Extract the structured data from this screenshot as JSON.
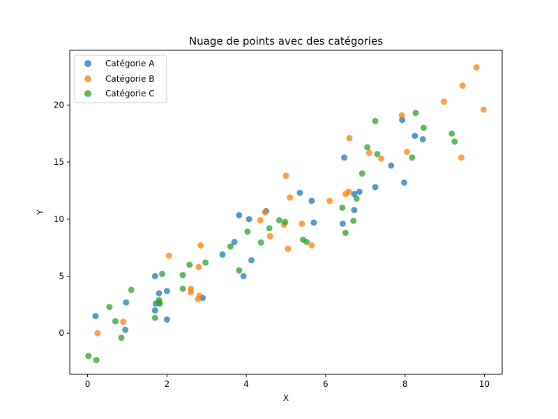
{
  "chart_data": {
    "type": "scatter",
    "title": "Nuage de points avec des catégories",
    "xlabel": "X",
    "ylabel": "Y",
    "xlim": [
      -0.45,
      10.45
    ],
    "ylim": [
      -3.6,
      24.8
    ],
    "xticks": [
      0,
      2,
      4,
      6,
      8,
      10
    ],
    "yticks": [
      0,
      5,
      10,
      15,
      20
    ],
    "grid": false,
    "legend_position": "top-left",
    "series": [
      {
        "name": "Catégorie A",
        "color": "#1f77b4",
        "points": [
          [
            0.2,
            1.5
          ],
          [
            0.97,
            2.7
          ],
          [
            0.95,
            0.3
          ],
          [
            1.7,
            2.0
          ],
          [
            1.72,
            2.6
          ],
          [
            1.7,
            5.0
          ],
          [
            1.8,
            3.5
          ],
          [
            2.0,
            3.7
          ],
          [
            2.0,
            1.2
          ],
          [
            2.9,
            3.1
          ],
          [
            3.4,
            6.9
          ],
          [
            3.7,
            8.0
          ],
          [
            3.82,
            10.35
          ],
          [
            3.93,
            5.0
          ],
          [
            4.07,
            10.0
          ],
          [
            4.13,
            6.4
          ],
          [
            4.5,
            10.7
          ],
          [
            5.35,
            12.3
          ],
          [
            5.7,
            9.7
          ],
          [
            5.65,
            11.6
          ],
          [
            6.47,
            15.4
          ],
          [
            6.43,
            9.6
          ],
          [
            6.72,
            12.2
          ],
          [
            6.72,
            10.8
          ],
          [
            6.85,
            12.4
          ],
          [
            7.25,
            12.8
          ],
          [
            7.65,
            14.7
          ],
          [
            7.93,
            18.7
          ],
          [
            7.98,
            13.2
          ],
          [
            8.25,
            17.3
          ],
          [
            8.45,
            17.0
          ]
        ]
      },
      {
        "name": "Catégorie B",
        "color": "#ff7f0e",
        "points": [
          [
            0.25,
            0.0
          ],
          [
            0.9,
            1.0
          ],
          [
            2.05,
            6.8
          ],
          [
            2.6,
            3.9
          ],
          [
            2.6,
            3.6
          ],
          [
            2.78,
            3.0
          ],
          [
            2.8,
            5.8
          ],
          [
            2.82,
            3.3
          ],
          [
            2.85,
            7.7
          ],
          [
            4.35,
            9.9
          ],
          [
            4.47,
            10.6
          ],
          [
            4.6,
            8.5
          ],
          [
            4.95,
            9.5
          ],
          [
            5.0,
            13.8
          ],
          [
            5.05,
            7.4
          ],
          [
            5.1,
            11.9
          ],
          [
            5.4,
            9.6
          ],
          [
            5.65,
            7.7
          ],
          [
            6.1,
            11.6
          ],
          [
            6.5,
            12.2
          ],
          [
            6.58,
            12.4
          ],
          [
            6.6,
            17.1
          ],
          [
            7.1,
            15.8
          ],
          [
            7.4,
            15.3
          ],
          [
            7.92,
            19.1
          ],
          [
            8.05,
            15.9
          ],
          [
            8.98,
            20.3
          ],
          [
            9.42,
            15.4
          ],
          [
            9.45,
            21.7
          ],
          [
            9.8,
            23.3
          ],
          [
            9.98,
            19.6
          ]
        ]
      },
      {
        "name": "Catégorie C",
        "color": "#2ca02c",
        "points": [
          [
            0.02,
            -2.0
          ],
          [
            0.22,
            -2.35
          ],
          [
            0.55,
            2.3
          ],
          [
            0.7,
            1.05
          ],
          [
            0.85,
            -0.4
          ],
          [
            1.1,
            3.8
          ],
          [
            1.7,
            1.35
          ],
          [
            1.8,
            2.9
          ],
          [
            1.8,
            2.7
          ],
          [
            1.82,
            2.6
          ],
          [
            1.88,
            5.2
          ],
          [
            2.4,
            3.9
          ],
          [
            2.4,
            5.1
          ],
          [
            2.57,
            6.0
          ],
          [
            2.97,
            6.2
          ],
          [
            3.6,
            7.6
          ],
          [
            3.82,
            5.5
          ],
          [
            4.03,
            8.9
          ],
          [
            4.37,
            7.95
          ],
          [
            4.58,
            9.2
          ],
          [
            4.83,
            9.9
          ],
          [
            4.98,
            9.75
          ],
          [
            5.43,
            8.2
          ],
          [
            5.52,
            8.0
          ],
          [
            6.42,
            11.0
          ],
          [
            6.5,
            8.8
          ],
          [
            6.7,
            9.85
          ],
          [
            6.78,
            11.8
          ],
          [
            6.92,
            14.0
          ],
          [
            7.05,
            16.3
          ],
          [
            7.25,
            18.6
          ],
          [
            7.3,
            15.7
          ],
          [
            8.18,
            15.4
          ],
          [
            8.27,
            19.3
          ],
          [
            8.47,
            18.0
          ],
          [
            9.18,
            17.5
          ],
          [
            9.25,
            16.8
          ]
        ]
      }
    ]
  }
}
